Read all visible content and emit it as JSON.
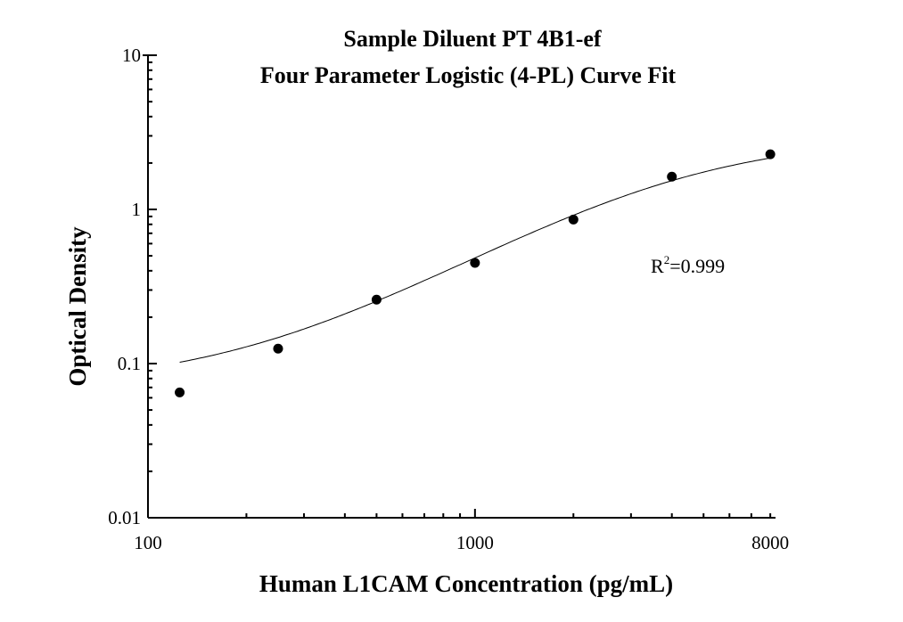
{
  "chart_data": {
    "type": "scatter",
    "title": "Sample Diluent PT 4B1-ef",
    "subtitle": "Four Parameter Logistic (4-PL) Curve Fit",
    "xlabel": "Human L1CAM Concentration (pg/mL)",
    "ylabel": "Optical Density",
    "xscale": "log",
    "yscale": "log",
    "xlim": [
      100,
      8300
    ],
    "ylim": [
      0.01,
      10
    ],
    "xticks": [
      {
        "value": 100,
        "label": "100"
      },
      {
        "value": 1000,
        "label": "1000"
      },
      {
        "value": 8000,
        "label": "8000"
      }
    ],
    "yticks": [
      {
        "value": 0.01,
        "label": "0.01"
      },
      {
        "value": 0.1,
        "label": "0.1"
      },
      {
        "value": 1,
        "label": "1"
      },
      {
        "value": 10,
        "label": "10"
      }
    ],
    "grid": false,
    "points": {
      "x": [
        125,
        250,
        500,
        1000,
        2000,
        4000,
        8000
      ],
      "y": [
        0.065,
        0.125,
        0.26,
        0.45,
        0.86,
        1.63,
        2.28
      ]
    },
    "fit": {
      "model": "4PL",
      "A": 0.07,
      "B": 1.3,
      "C": 4000,
      "D": 3.0,
      "x_range": [
        125,
        8000
      ]
    },
    "annotation": {
      "prefix": "R",
      "sup": "2",
      "text": "=0.999"
    },
    "colors": {
      "marks": "#000000",
      "background": "#ffffff"
    }
  }
}
